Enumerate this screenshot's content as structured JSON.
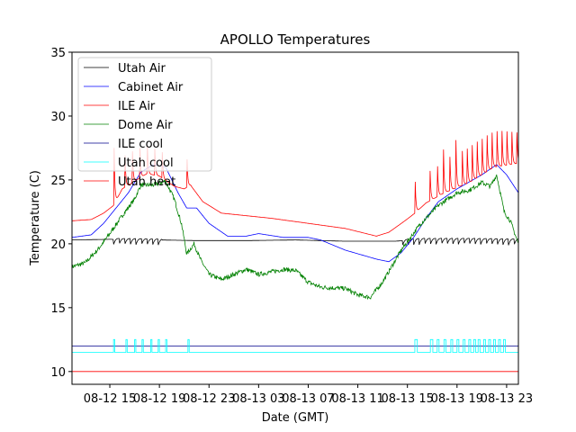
{
  "chart_data": {
    "type": "line",
    "title": "APOLLO Temperatures",
    "xlabel": "Date (GMT)",
    "ylabel": "Temperature (C)",
    "x_unit": "hours since 08-12 00:00 GMT",
    "xlim": [
      11.95,
      47.95
    ],
    "ylim": [
      9,
      35
    ],
    "yticks": [
      10,
      15,
      20,
      25,
      30,
      35
    ],
    "xticks": [
      {
        "x": 15,
        "label": "08-12 15"
      },
      {
        "x": 19,
        "label": "08-12 19"
      },
      {
        "x": 23,
        "label": "08-12 23"
      },
      {
        "x": 27,
        "label": "08-13 03"
      },
      {
        "x": 31,
        "label": "08-13 07"
      },
      {
        "x": 35,
        "label": "08-13 11"
      },
      {
        "x": 39,
        "label": "08-13 15"
      },
      {
        "x": 43,
        "label": "08-13 19"
      },
      {
        "x": 47,
        "label": "08-13 23"
      }
    ],
    "grid": false,
    "legend_position": "upper-left",
    "series": [
      {
        "name": "Utah Air",
        "color": "#000000",
        "points": [
          [
            11.95,
            20.3
          ],
          [
            15,
            20.35
          ],
          [
            19,
            20.3
          ],
          [
            22,
            20.25
          ],
          [
            26,
            20.25
          ],
          [
            30,
            20.3
          ],
          [
            34,
            20.2
          ],
          [
            38,
            20.2
          ],
          [
            40,
            20.35
          ],
          [
            44,
            20.35
          ],
          [
            47.95,
            20.3
          ]
        ],
        "sawtooth": {
          "ranges": [
            [
              15.3,
              19.2
            ],
            [
              38.6,
              47.95
            ]
          ],
          "period": 0.45,
          "depth": 0.5
        }
      },
      {
        "name": "Cabinet Air",
        "color": "#0000ff",
        "points": [
          [
            11.95,
            20.5
          ],
          [
            13.5,
            20.7
          ],
          [
            14.5,
            21.6
          ],
          [
            15.5,
            22.8
          ],
          [
            16.5,
            24.0
          ],
          [
            17.5,
            25.6
          ],
          [
            18.5,
            26.2
          ],
          [
            19.5,
            26.0
          ],
          [
            20.5,
            24.0
          ],
          [
            21.2,
            22.8
          ],
          [
            22.0,
            22.8
          ],
          [
            23.0,
            21.6
          ],
          [
            24.5,
            20.6
          ],
          [
            26,
            20.6
          ],
          [
            27,
            20.8
          ],
          [
            29,
            20.5
          ],
          [
            31,
            20.5
          ],
          [
            32,
            20.3
          ],
          [
            34,
            19.5
          ],
          [
            36.5,
            18.8
          ],
          [
            37.5,
            18.6
          ],
          [
            38.5,
            19.3
          ],
          [
            39.5,
            20.5
          ],
          [
            40.5,
            22.0
          ],
          [
            41.5,
            23.3
          ],
          [
            43,
            24.3
          ],
          [
            45,
            25.4
          ],
          [
            46.2,
            26.2
          ],
          [
            47,
            25.4
          ],
          [
            47.95,
            24.0
          ]
        ]
      },
      {
        "name": "ILE Air",
        "color": "#ff0000",
        "points": [
          [
            11.95,
            21.8
          ],
          [
            13.5,
            21.9
          ],
          [
            14.5,
            22.4
          ],
          [
            15.3,
            23.0
          ],
          [
            16,
            24.3
          ],
          [
            18,
            25.5
          ],
          [
            19,
            25.3
          ],
          [
            20.2,
            24.5
          ],
          [
            21,
            24.3
          ],
          [
            21.5,
            24.6
          ],
          [
            22.5,
            23.3
          ],
          [
            24,
            22.4
          ],
          [
            26,
            22.2
          ],
          [
            28,
            22.0
          ],
          [
            31,
            21.6
          ],
          [
            34,
            21.2
          ],
          [
            36.5,
            20.6
          ],
          [
            37.5,
            20.9
          ],
          [
            38.8,
            21.8
          ],
          [
            39.6,
            22.4
          ],
          [
            40.5,
            23.2
          ],
          [
            42,
            24.0
          ],
          [
            44,
            24.8
          ],
          [
            46,
            26.0
          ],
          [
            47.95,
            26.3
          ]
        ],
        "spikes": {
          "times": [
            15.35,
            16.2,
            16.8,
            17.4,
            18.0,
            18.6,
            19.2,
            21.2,
            39.6,
            40.8,
            41.4,
            41.9,
            42.4,
            42.9,
            43.4,
            43.8,
            44.2,
            44.6,
            45.0,
            45.4,
            45.8,
            46.2,
            46.6,
            47.0,
            47.4,
            47.8
          ],
          "peaks": [
            27.5,
            28.5,
            28.8,
            29.0,
            29.0,
            28.8,
            28.5,
            28.0,
            26.4,
            27.2,
            27.6,
            28.0,
            28.5,
            28.8,
            29.0,
            29.2,
            29.5,
            29.8,
            30.0,
            30.3,
            30.5,
            30.6,
            30.6,
            30.5,
            30.4,
            30.3
          ]
        }
      },
      {
        "name": "Dome Air",
        "color": "#008000",
        "points": [
          [
            11.95,
            18.2
          ],
          [
            13,
            18.5
          ],
          [
            14,
            19.5
          ],
          [
            15,
            20.8
          ],
          [
            16,
            22.2
          ],
          [
            17,
            23.5
          ],
          [
            17.5,
            24.6
          ],
          [
            18.5,
            24.6
          ],
          [
            19.5,
            24.9
          ],
          [
            20.2,
            23.5
          ],
          [
            20.8,
            21.5
          ],
          [
            21.2,
            19.2
          ],
          [
            21.8,
            20.0
          ],
          [
            22.3,
            18.8
          ],
          [
            23,
            17.6
          ],
          [
            24,
            17.2
          ],
          [
            25,
            17.6
          ],
          [
            26,
            18.0
          ],
          [
            27,
            17.6
          ],
          [
            28,
            17.8
          ],
          [
            29,
            18.0
          ],
          [
            30,
            17.9
          ],
          [
            31,
            17.0
          ],
          [
            32,
            16.6
          ],
          [
            34,
            16.5
          ],
          [
            35,
            16.0
          ],
          [
            36,
            15.8
          ],
          [
            37,
            17.0
          ],
          [
            38.5,
            19.5
          ],
          [
            40,
            21.5
          ],
          [
            41.5,
            23.0
          ],
          [
            43,
            24.0
          ],
          [
            44,
            24.2
          ],
          [
            45,
            24.8
          ],
          [
            45.7,
            24.5
          ],
          [
            46.2,
            25.4
          ],
          [
            46.8,
            22.5
          ],
          [
            47.3,
            21.8
          ],
          [
            47.95,
            20.0
          ]
        ],
        "noise": 0.35
      },
      {
        "name": "ILE cool",
        "color": "#00008b",
        "points": [
          [
            11.95,
            12.0
          ],
          [
            47.95,
            12.0
          ]
        ]
      },
      {
        "name": "Utah cool",
        "color": "#00ffff",
        "points": [
          [
            11.95,
            11.5
          ],
          [
            47.95,
            11.5
          ]
        ],
        "pulses": {
          "high": 12.5,
          "intervals": [
            [
              15.3,
              15.4
            ],
            [
              16.3,
              16.4
            ],
            [
              17.0,
              17.1
            ],
            [
              17.6,
              17.7
            ],
            [
              18.3,
              18.4
            ],
            [
              18.9,
              19.0
            ],
            [
              19.5,
              19.6
            ],
            [
              21.3,
              21.4
            ],
            [
              39.6,
              39.8
            ],
            [
              40.85,
              41.05
            ],
            [
              41.4,
              41.55
            ],
            [
              41.95,
              42.1
            ],
            [
              42.5,
              42.65
            ],
            [
              43.0,
              43.15
            ],
            [
              43.5,
              43.65
            ],
            [
              43.95,
              44.1
            ],
            [
              44.35,
              44.5
            ],
            [
              44.7,
              44.85
            ],
            [
              45.15,
              45.3
            ],
            [
              45.55,
              45.7
            ],
            [
              45.95,
              46.1
            ],
            [
              46.35,
              46.5
            ],
            [
              46.75,
              46.9
            ]
          ]
        }
      },
      {
        "name": "Utah heat",
        "color": "#ff0000",
        "points": [
          [
            11.95,
            10.0
          ],
          [
            47.95,
            10.0
          ]
        ]
      }
    ]
  }
}
